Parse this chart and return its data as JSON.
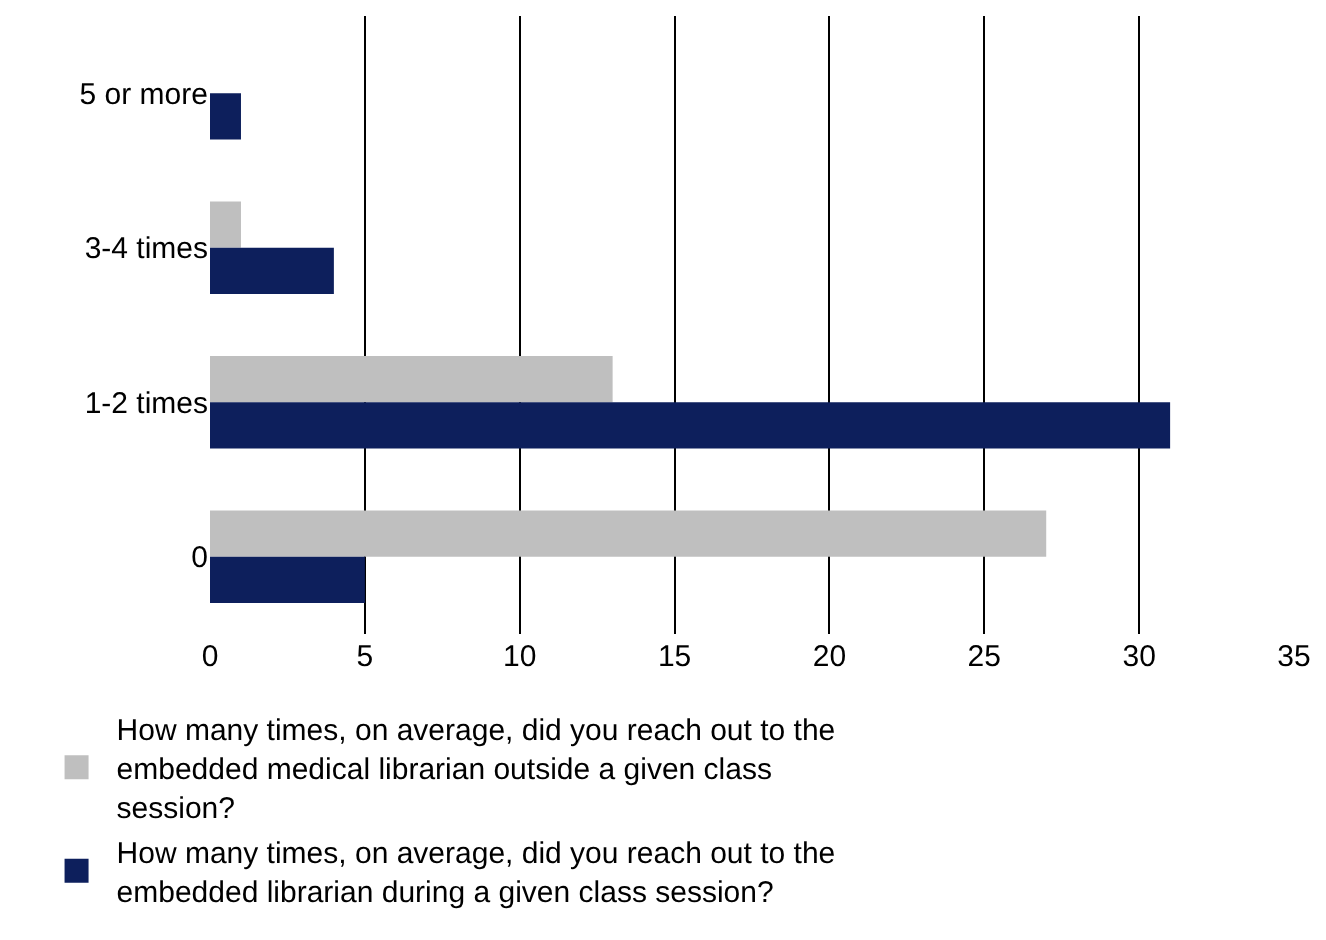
{
  "chart_data": {
    "type": "bar",
    "orientation": "horizontal",
    "categories": [
      "5 or more",
      "3-4 times",
      "1-2 times",
      "0"
    ],
    "series": [
      {
        "name": "How many times, on average, did you reach out to the embedded medical librarian outside a given class session?",
        "color": "#bfbfbf",
        "values": [
          0,
          1,
          13,
          27
        ]
      },
      {
        "name": "How many times, on average, did you reach out to the embedded librarian during a given class session?",
        "color": "#0d1f5c",
        "values": [
          1,
          4,
          31,
          5
        ]
      }
    ],
    "xlim": [
      0,
      35
    ],
    "xticks": [
      0,
      5,
      10,
      15,
      20,
      25,
      30,
      35
    ],
    "grid": "x",
    "legend": "bottom"
  }
}
